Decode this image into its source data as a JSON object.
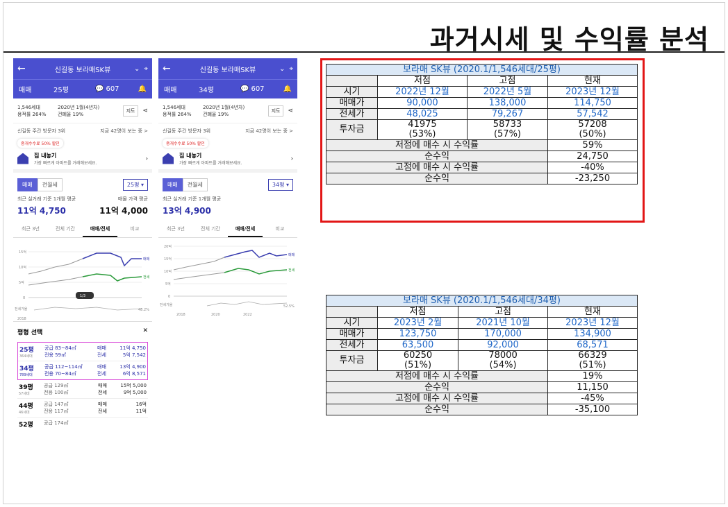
{
  "slide": {
    "title": "과거시세 및 수익률 분석"
  },
  "phone1": {
    "header_title": "신길동 보라매SK뷰",
    "trade_type": "매매",
    "size": "25평",
    "comments": "607",
    "info_a": [
      "1,546세대",
      "용적률 264%"
    ],
    "info_b": [
      "2020년 1월(4년차)",
      "건폐율 19%"
    ],
    "map_label": "지도",
    "visit_left": "신길동 주간 방문자 3위",
    "visit_right": "지금 42명이 보는 중 >",
    "promo": "중개수수료 50% 할인",
    "sell_title": "집 내놓기",
    "sell_sub": "가장 빠르게 아파트를 거래해보세요.",
    "seg_on": "매매",
    "seg_off": "전월세",
    "size_btn": "25평 ▾",
    "recent_label": "최근 실거래 기준 1개월 평균",
    "recent_price": "11억 4,750",
    "ask_label": "매물 가격 평균",
    "ask_price": "11억 4,000",
    "tabs": [
      "최근 3년",
      "전체 기간",
      "매매/전세",
      "비교"
    ],
    "chart_labels": {
      "y": [
        "15억",
        "10억",
        "5억",
        "0"
      ],
      "sell": "매매",
      "rent": "전세",
      "year": "2018",
      "ratio_label": "전세가율",
      "ratio": "48.2%",
      "page": "1/3"
    },
    "sheet_title": "평형 선택",
    "sheet_close": "✕",
    "rows": [
      {
        "size": "25평",
        "units": "364세대",
        "supply": "공급 83~84㎡",
        "excl": "전용 59㎡",
        "t1": "매매",
        "p1": "11억 4,750",
        "t2": "전세",
        "p2": "5억 7,542"
      },
      {
        "size": "34평",
        "units": "789세대",
        "supply": "공급 112~114㎡",
        "excl": "전용 70~84㎡",
        "t1": "매매",
        "p1": "13억 4,900",
        "t2": "전세",
        "p2": "6억 8,571"
      },
      {
        "size": "39평",
        "units": "57세대",
        "supply": "공급 129㎡",
        "excl": "전용 100㎡",
        "t1": "매매",
        "p1": "15억 5,000",
        "t2": "전세",
        "p2": "9억 5,000"
      },
      {
        "size": "44평",
        "units": "46세대",
        "supply": "공급 147㎡",
        "excl": "전용 117㎡",
        "t1": "매매",
        "p1": "16억",
        "t2": "전세",
        "p2": "11억"
      },
      {
        "size": "52평",
        "units": "",
        "supply": "공급 174㎡",
        "excl": "",
        "t1": "",
        "p1": "",
        "t2": "",
        "p2": ""
      }
    ]
  },
  "phone2": {
    "header_title": "신길동 보라매SK뷰",
    "trade_type": "매매",
    "size": "34평",
    "comments": "607",
    "info_a": [
      "1,546세대",
      "용적률 264%"
    ],
    "info_b": [
      "2020년 1월(4년차)",
      "건폐율 19%"
    ],
    "map_label": "지도",
    "visit_left": "신길동 주간 방문자 3위",
    "visit_right": "지금 42명이 보는 중 >",
    "promo": "중개수수료 50% 할인",
    "sell_title": "집 내놓기",
    "sell_sub": "가장 빠르게 아파트를 거래해보세요.",
    "seg_on": "매매",
    "seg_off": "전월세",
    "size_btn": "34평 ▾",
    "recent_label": "최근 실거래 기준 1개월 평균",
    "recent_price": "13억 4,900",
    "tabs": [
      "최근 3년",
      "전체 기간",
      "매매/전세",
      "비교"
    ],
    "chart_labels": {
      "y": [
        "20억",
        "15억",
        "10억",
        "5억",
        "0"
      ],
      "sell": "매매",
      "rent": "전세",
      "years": [
        "2018",
        "2020",
        "2022"
      ],
      "ratio_label": "전세가율",
      "ratio": "52.5%"
    }
  },
  "table25": {
    "title": "보라매 SK뷰 (2020.1/1,546세대/25평)",
    "cols": [
      "저점",
      "고점",
      "현재"
    ],
    "period_label": "시기",
    "period": [
      "2022년 12월",
      "2022년 5월",
      "2023년 12월"
    ],
    "sale_label": "매매가",
    "sale": [
      "90,000",
      "138,000",
      "114,750"
    ],
    "jeonse_label": "전세가",
    "jeonse": [
      "48,025",
      "79,267",
      "57,542"
    ],
    "invest_label": "투자금",
    "invest": [
      "41975",
      "58733",
      "57208"
    ],
    "invest_pct": [
      "(53%)",
      "(57%)",
      "(50%)"
    ],
    "low_roi_label": "저점에 매수 시 수익률",
    "low_roi": "59%",
    "low_net_label": "순수익",
    "low_net": "24,750",
    "high_roi_label": "고점에 매수 시 수익률",
    "high_roi": "-40%",
    "high_net_label": "순수익",
    "high_net": "-23,250"
  },
  "table34": {
    "title": "보라매 SK뷰 (2020.1/1,546세대/34평)",
    "cols": [
      "저점",
      "고점",
      "현재"
    ],
    "period_label": "시기",
    "period": [
      "2023년 2월",
      "2021년 10월",
      "2023년 12월"
    ],
    "sale_label": "매매가",
    "sale": [
      "123,750",
      "170,000",
      "134,900"
    ],
    "jeonse_label": "전세가",
    "jeonse": [
      "63,500",
      "92,000",
      "68,571"
    ],
    "invest_label": "투자금",
    "invest": [
      "60250",
      "78000",
      "66329"
    ],
    "invest_pct": [
      "(51%)",
      "(54%)",
      "(51%)"
    ],
    "low_roi_label": "저점에 매수 시 수익률",
    "low_roi": "19%",
    "low_net_label": "순수익",
    "low_net": "11,150",
    "high_roi_label": "고점에 매수 시 수익률",
    "high_roi": "-45%",
    "high_net_label": "순수익",
    "high_net": "-35,100"
  },
  "colors": {
    "accent": "#4a4fcf",
    "table_blue": "#1f67c8",
    "frame_red": "#e21616"
  }
}
